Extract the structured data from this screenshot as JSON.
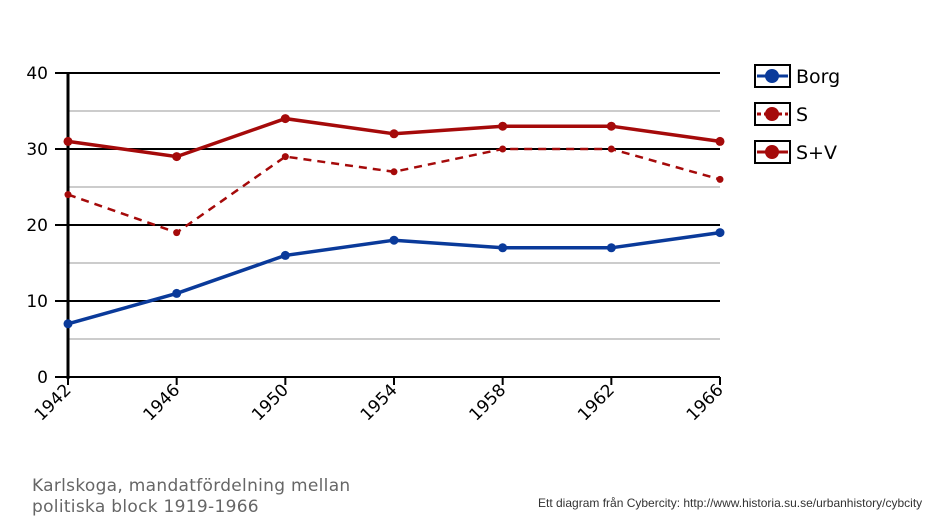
{
  "chart_data": {
    "type": "line",
    "title": "Karlskoga, mandatfördelning mellan politiska block 1919-1966",
    "xlabel": "",
    "ylabel": "",
    "x": [
      1942,
      1946,
      1950,
      1954,
      1958,
      1962,
      1966
    ],
    "ylim": [
      0,
      40
    ],
    "yticks": [
      0,
      10,
      20,
      30,
      40
    ],
    "grid": true,
    "legend": "right",
    "series": [
      {
        "name": "Borg",
        "color": "#0a3a9a",
        "dashed": false,
        "values": [
          7,
          11,
          16,
          18,
          17,
          17,
          19
        ]
      },
      {
        "name": "S",
        "color": "#a50a0a",
        "dashed": true,
        "values": [
          24,
          19,
          29,
          27,
          30,
          30,
          26
        ]
      },
      {
        "name": "S+V",
        "color": "#a50a0a",
        "dashed": false,
        "values": [
          31,
          29,
          34,
          32,
          33,
          33,
          31
        ]
      }
    ]
  },
  "caption": {
    "line1": "Karlskoga, mandatfördelning mellan",
    "line2": "politiska block 1919-1966"
  },
  "credit": "Ett diagram från Cybercity: http://www.historia.su.se/urbanhistory/cybcity"
}
